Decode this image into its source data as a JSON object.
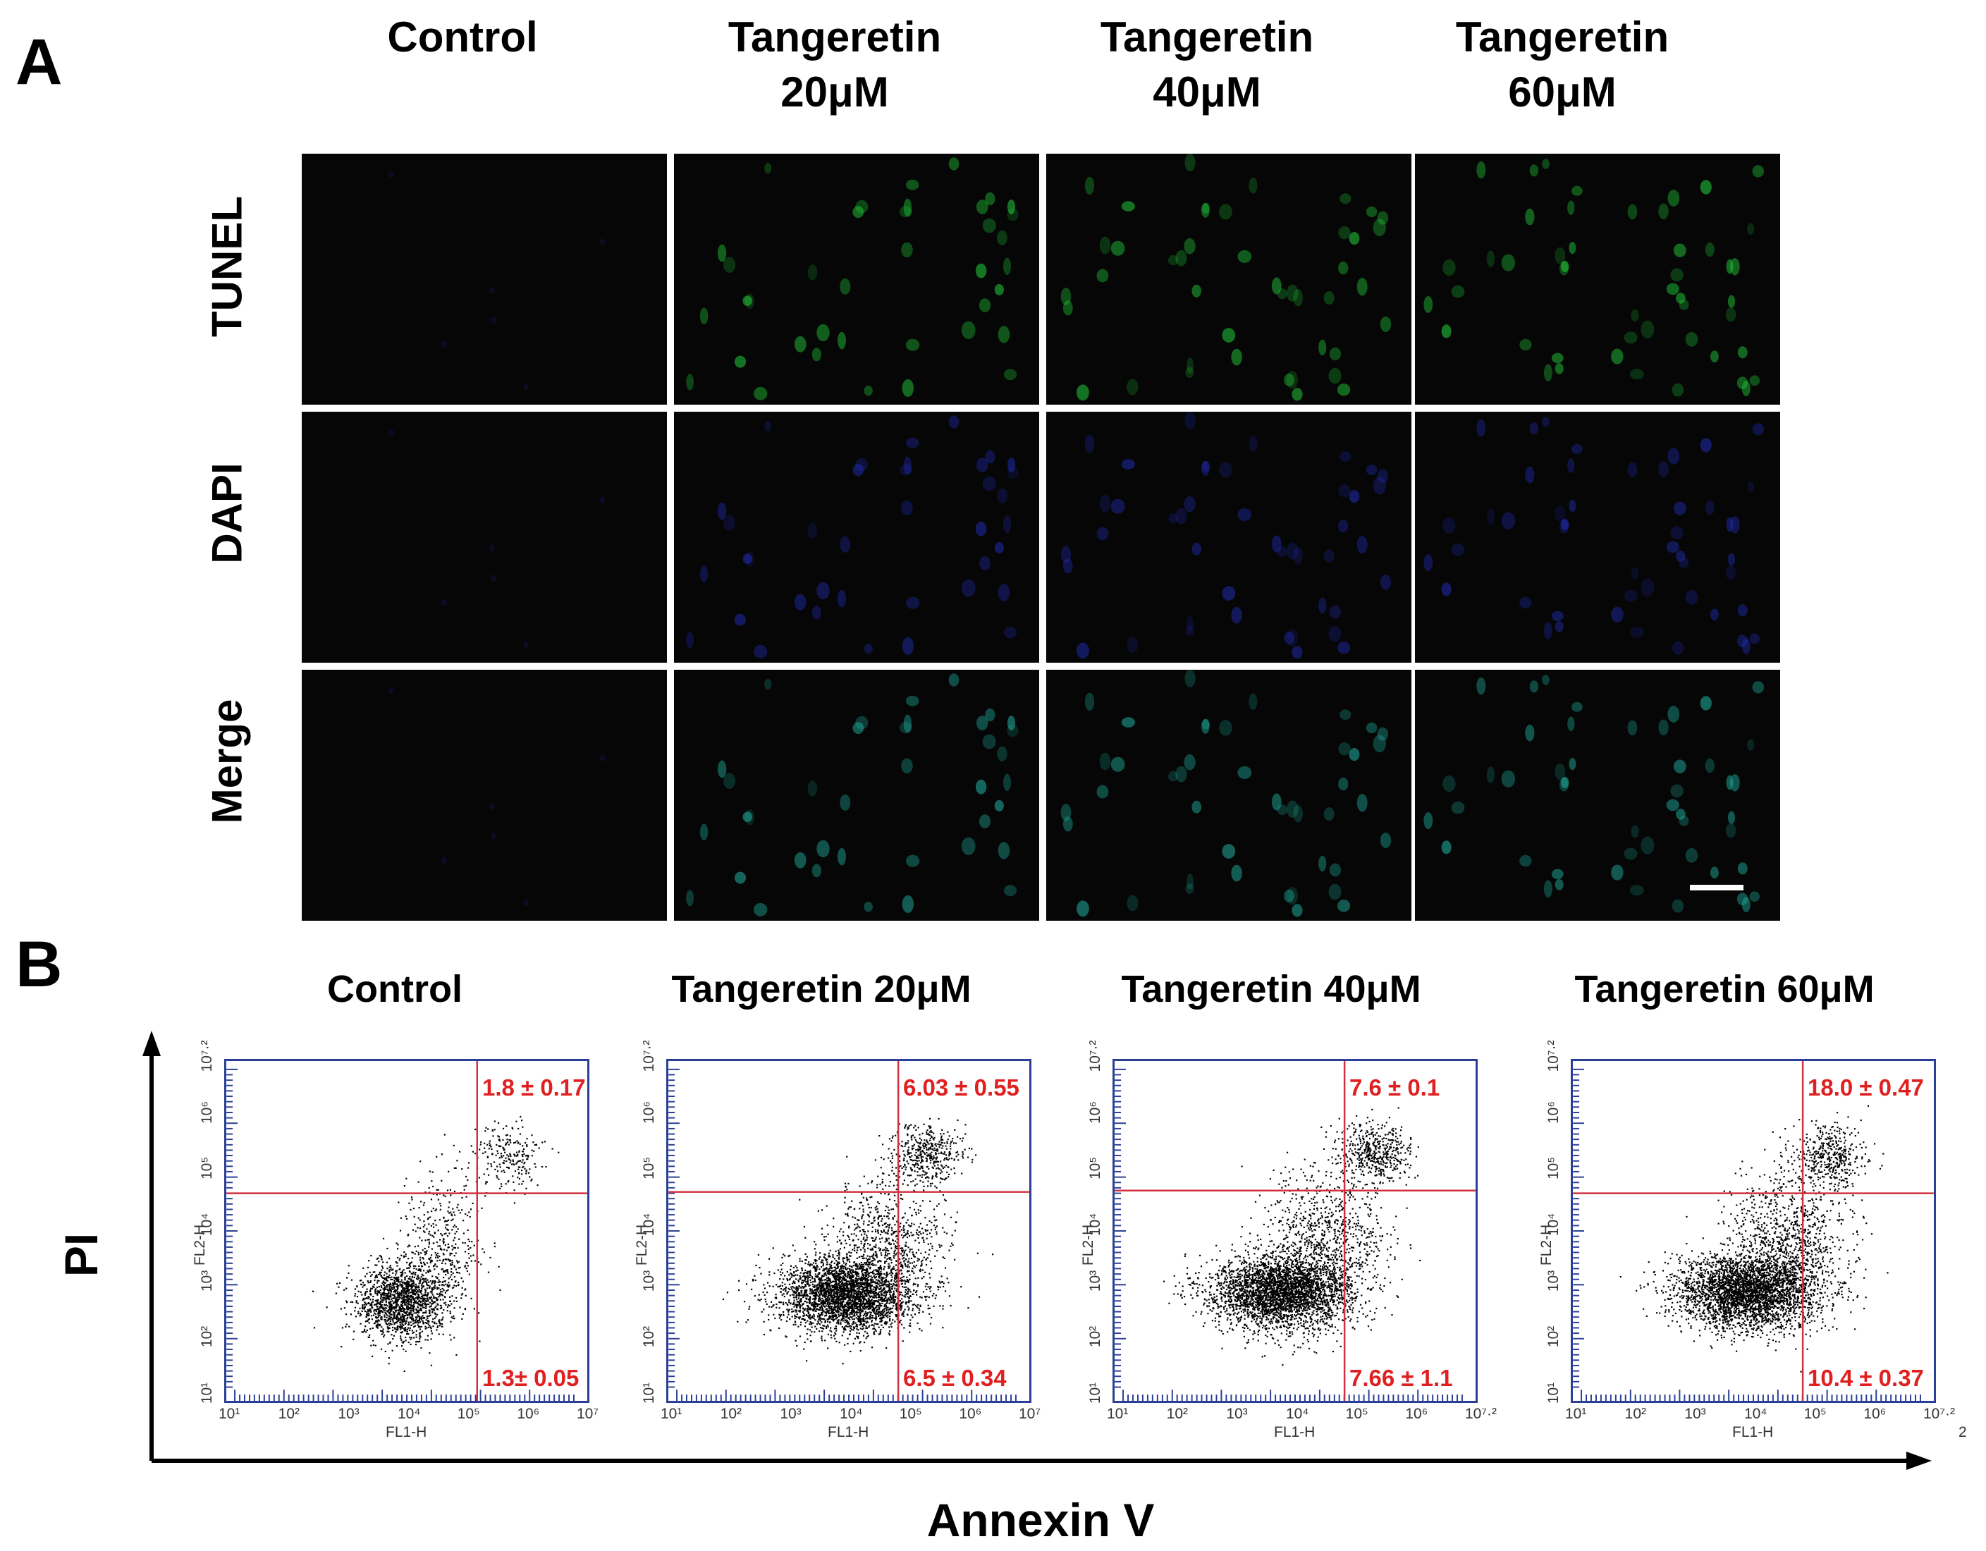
{
  "panel_a": {
    "letter": "A",
    "columns": [
      {
        "line1": "Control",
        "line2": ""
      },
      {
        "line1": "Tangeretin",
        "line2": "20μM"
      },
      {
        "line1": "Tangeretin",
        "line2": "40μM"
      },
      {
        "line1": "Tangeretin",
        "line2": "60μM"
      }
    ],
    "rows": [
      "TUNEL",
      "DAPI",
      "Merge"
    ],
    "colors": {
      "tunel": "#22c43a",
      "dapi": "#2530c8",
      "merge": "#1fa99a",
      "background": "#050605"
    }
  },
  "panel_b": {
    "letter": "B",
    "x_axis_label": "Annexin V",
    "y_axis_label": "PI",
    "plot_x_channel": "FL1-H",
    "plot_y_channel": "FL2-H",
    "line_color": "#d03040",
    "frame_color": "#2a3f95",
    "plots": [
      {
        "title": "Control",
        "upper_right": "1.8 ± 0.17",
        "lower_right": "1.3± 0.05"
      },
      {
        "title": "Tangeretin 20μM",
        "upper_right": "6.03 ± 0.55",
        "lower_right": "6.5 ± 0.34"
      },
      {
        "title": "Tangeretin 40μM",
        "upper_right": "7.6 ± 0.1",
        "lower_right": "7.66 ± 1.1"
      },
      {
        "title": "Tangeretin 60μM",
        "upper_right": "18.0 ± 0.47",
        "lower_right": "10.4 ± 0.37"
      }
    ],
    "x_ticks_a": [
      "10¹",
      "10²",
      "10³",
      "10⁴",
      "10⁵",
      "10⁶",
      "10⁷"
    ],
    "x_ticks_b": [
      "10¹",
      "10²",
      "10³",
      "10⁴",
      "10⁵",
      "10⁶",
      "10⁷·²"
    ],
    "y_ticks": [
      "10¹",
      "10²",
      "10³",
      "10⁴",
      "10⁵",
      "10⁶",
      "10⁷·²"
    ],
    "stray_mark": "2"
  }
}
